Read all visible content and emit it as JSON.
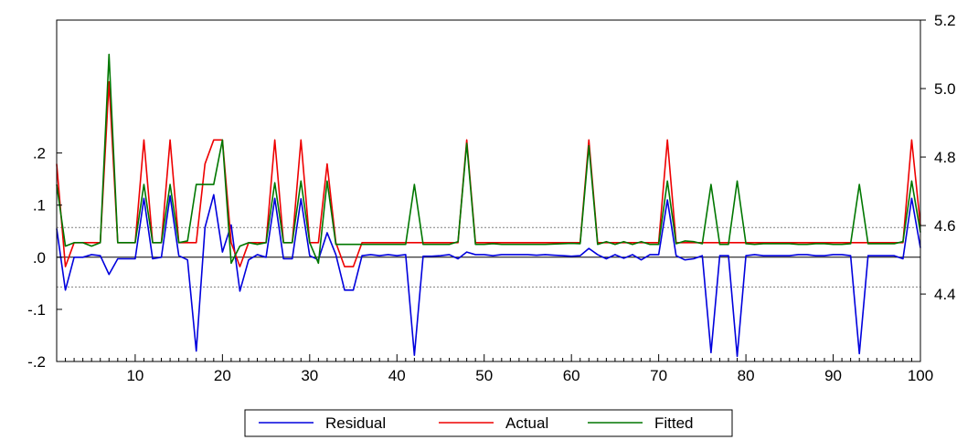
{
  "chart_data": {
    "type": "line",
    "x": [
      1,
      2,
      3,
      4,
      5,
      6,
      7,
      8,
      9,
      10,
      11,
      12,
      13,
      14,
      15,
      16,
      17,
      18,
      19,
      20,
      21,
      22,
      23,
      24,
      25,
      26,
      27,
      28,
      29,
      30,
      31,
      32,
      33,
      34,
      35,
      36,
      37,
      38,
      39,
      40,
      41,
      42,
      43,
      44,
      45,
      46,
      47,
      48,
      49,
      50,
      51,
      52,
      53,
      54,
      55,
      56,
      57,
      58,
      59,
      60,
      61,
      62,
      63,
      64,
      65,
      66,
      67,
      68,
      69,
      70,
      71,
      72,
      73,
      74,
      75,
      76,
      77,
      78,
      79,
      80,
      81,
      82,
      83,
      84,
      85,
      86,
      87,
      88,
      89,
      90,
      91,
      92,
      93,
      94,
      95,
      96,
      97,
      98,
      99,
      100
    ],
    "x_ticks": [
      "10",
      "20",
      "30",
      "40",
      "50",
      "60",
      "70",
      "80",
      "90",
      "100"
    ],
    "xlim": [
      1,
      100
    ],
    "left_axis": {
      "ticks": [
        ".2",
        ".1",
        ".0",
        "-.1",
        "-.2"
      ],
      "ylim": [
        -0.2,
        0.455
      ]
    },
    "right_axis": {
      "ticks": [
        "4.4",
        "4.6",
        "4.8",
        "5.0",
        "5.2"
      ],
      "ylim": [
        4.203,
        5.2
      ]
    },
    "reference_lines": [
      0.057,
      -0.057
    ],
    "series": [
      {
        "name": "Residual",
        "axis": "left",
        "color": "#0000dd",
        "values": [
          0.055,
          -0.063,
          0.0,
          0.0,
          0.005,
          0.003,
          -0.033,
          -0.003,
          -0.003,
          -0.003,
          0.113,
          -0.003,
          0.0,
          0.118,
          0.003,
          -0.005,
          -0.18,
          0.057,
          0.12,
          0.01,
          0.062,
          -0.065,
          -0.005,
          0.005,
          0.0,
          0.113,
          -0.003,
          -0.003,
          0.112,
          0.003,
          -0.005,
          0.047,
          0.005,
          -0.063,
          -0.063,
          0.003,
          0.005,
          0.003,
          0.005,
          0.003,
          0.005,
          -0.188,
          0.002,
          0.002,
          0.003,
          0.005,
          -0.003,
          0.01,
          0.005,
          0.005,
          0.003,
          0.005,
          0.005,
          0.005,
          0.005,
          0.004,
          0.005,
          0.004,
          0.003,
          0.002,
          0.003,
          0.017,
          0.005,
          -0.003,
          0.005,
          -0.002,
          0.005,
          -0.005,
          0.005,
          0.005,
          0.11,
          0.003,
          -0.005,
          -0.003,
          0.003,
          -0.183,
          0.003,
          0.003,
          -0.19,
          0.003,
          0.005,
          0.003,
          0.003,
          0.003,
          0.003,
          0.005,
          0.005,
          0.003,
          0.003,
          0.005,
          0.005,
          0.003,
          -0.185,
          0.003,
          0.003,
          0.003,
          0.003,
          -0.003,
          0.113,
          0.018
        ]
      },
      {
        "name": "Actual",
        "axis": "right",
        "color": "#ee0000",
        "values": [
          4.78,
          4.48,
          4.55,
          4.55,
          4.55,
          4.55,
          5.02,
          4.55,
          4.55,
          4.55,
          4.85,
          4.55,
          4.55,
          4.85,
          4.55,
          4.55,
          4.55,
          4.78,
          4.85,
          4.85,
          4.55,
          4.48,
          4.55,
          4.55,
          4.55,
          4.85,
          4.55,
          4.55,
          4.85,
          4.55,
          4.55,
          4.78,
          4.55,
          4.48,
          4.48,
          4.55,
          4.55,
          4.55,
          4.55,
          4.55,
          4.55,
          4.55,
          4.55,
          4.55,
          4.55,
          4.55,
          4.55,
          4.85,
          4.55,
          4.55,
          4.55,
          4.55,
          4.55,
          4.55,
          4.55,
          4.55,
          4.55,
          4.55,
          4.55,
          4.55,
          4.55,
          4.85,
          4.55,
          4.55,
          4.55,
          4.55,
          4.55,
          4.55,
          4.55,
          4.55,
          4.85,
          4.55,
          4.55,
          4.55,
          4.55,
          4.55,
          4.55,
          4.55,
          4.55,
          4.55,
          4.55,
          4.55,
          4.55,
          4.55,
          4.55,
          4.55,
          4.55,
          4.55,
          4.55,
          4.55,
          4.55,
          4.55,
          4.55,
          4.55,
          4.55,
          4.55,
          4.55,
          4.55,
          4.85,
          4.6
        ]
      },
      {
        "name": "Fitted",
        "axis": "right",
        "color": "#007700",
        "values": [
          4.72,
          4.54,
          4.55,
          4.55,
          4.54,
          4.55,
          5.1,
          4.55,
          4.55,
          4.55,
          4.72,
          4.55,
          4.55,
          4.72,
          4.55,
          4.555,
          4.72,
          4.72,
          4.72,
          4.85,
          4.49,
          4.54,
          4.55,
          4.545,
          4.55,
          4.725,
          4.55,
          4.55,
          4.73,
          4.55,
          4.49,
          4.73,
          4.545,
          4.545,
          4.545,
          4.545,
          4.545,
          4.545,
          4.545,
          4.545,
          4.545,
          4.72,
          4.545,
          4.545,
          4.545,
          4.545,
          4.553,
          4.84,
          4.545,
          4.545,
          4.547,
          4.545,
          4.545,
          4.545,
          4.545,
          4.545,
          4.545,
          4.546,
          4.547,
          4.548,
          4.547,
          4.833,
          4.545,
          4.553,
          4.545,
          4.553,
          4.545,
          4.553,
          4.545,
          4.545,
          4.73,
          4.547,
          4.555,
          4.553,
          4.547,
          4.72,
          4.545,
          4.545,
          4.73,
          4.547,
          4.545,
          4.547,
          4.547,
          4.547,
          4.547,
          4.545,
          4.545,
          4.547,
          4.547,
          4.545,
          4.545,
          4.547,
          4.72,
          4.547,
          4.547,
          4.547,
          4.547,
          4.553,
          4.73,
          4.58
        ]
      }
    ],
    "legend": {
      "placement": "bottom-center",
      "entries": [
        "Residual",
        "Actual",
        "Fitted"
      ]
    }
  }
}
